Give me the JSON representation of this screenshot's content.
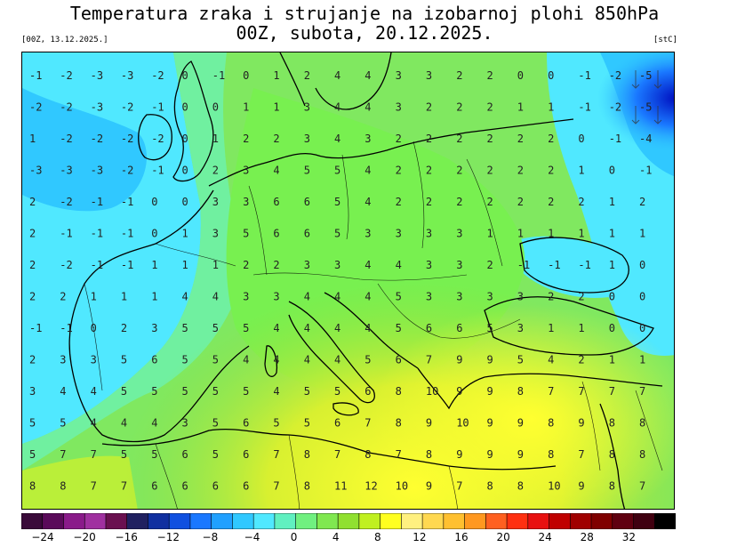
{
  "header": {
    "title_line1": "Temperatura zraka i strujanje na izobarnoj plohi 850hPa",
    "title_line2": "00Z, subota, 20.12.2025.",
    "run_label": "[00Z, 13.12.2025.]",
    "unit_label": "[stC]"
  },
  "legend": {
    "tick_labels": [
      "−24",
      "−20",
      "−16",
      "−12",
      "−8",
      "−4",
      "0",
      "4",
      "8",
      "12",
      "16",
      "20",
      "24",
      "28",
      "32"
    ],
    "colors": [
      "#3a0a3a",
      "#5a0a5a",
      "#8a1a8a",
      "#a030a0",
      "#6a1050",
      "#202060",
      "#1030a0",
      "#1050e0",
      "#1a78ff",
      "#20a0ff",
      "#30c8ff",
      "#50e8ff",
      "#60f0c0",
      "#70f080",
      "#80e850",
      "#90e030",
      "#c0f020",
      "#ffff20",
      "#fff080",
      "#ffd850",
      "#ffc030",
      "#ff9820",
      "#ff6020",
      "#ff3010",
      "#e81010",
      "#c00000",
      "#a00000",
      "#800000",
      "#600010",
      "#400010",
      "#000000"
    ]
  },
  "map": {
    "region": "Europe",
    "field": "850hPa temperature",
    "grid_values": [
      [
        "-1",
        "-2",
        "-3",
        "-3",
        "-2",
        "0",
        "-1",
        "0",
        "1",
        "2",
        "4",
        "4",
        "3",
        "3",
        "2",
        "2",
        "0",
        "0",
        "-1",
        "-2",
        "-5"
      ],
      [
        "-2",
        "-2",
        "-3",
        "-2",
        "-1",
        "0",
        "0",
        "1",
        "1",
        "3",
        "4",
        "4",
        "3",
        "2",
        "2",
        "2",
        "1",
        "1",
        "-1",
        "-2",
        "-5"
      ],
      [
        "1",
        "-2",
        "-2",
        "-2",
        "-2",
        "0",
        "1",
        "2",
        "2",
        "3",
        "4",
        "3",
        "2",
        "2",
        "2",
        "2",
        "2",
        "2",
        "0",
        "-1",
        "-4"
      ],
      [
        "-3",
        "-3",
        "-3",
        "-2",
        "-1",
        "0",
        "2",
        "3",
        "4",
        "5",
        "5",
        "4",
        "2",
        "2",
        "2",
        "2",
        "2",
        "2",
        "1",
        "0",
        "-1"
      ],
      [
        "2",
        "-2",
        "-1",
        "-1",
        "0",
        "0",
        "3",
        "3",
        "6",
        "6",
        "5",
        "4",
        "2",
        "2",
        "2",
        "2",
        "2",
        "2",
        "2",
        "1",
        "2"
      ],
      [
        "2",
        "-1",
        "-1",
        "-1",
        "0",
        "1",
        "3",
        "5",
        "6",
        "6",
        "5",
        "3",
        "3",
        "3",
        "3",
        "1",
        "1",
        "1",
        "1",
        "1",
        "1"
      ],
      [
        "2",
        "-2",
        "-1",
        "-1",
        "1",
        "1",
        "1",
        "2",
        "2",
        "3",
        "3",
        "4",
        "4",
        "3",
        "3",
        "2",
        "-1",
        "-1",
        "-1",
        "1",
        "0"
      ],
      [
        "2",
        "2",
        "1",
        "1",
        "1",
        "4",
        "4",
        "3",
        "3",
        "4",
        "4",
        "4",
        "5",
        "3",
        "3",
        "3",
        "3",
        "2",
        "2",
        "0",
        "0"
      ],
      [
        "-1",
        "-1",
        "0",
        "2",
        "3",
        "5",
        "5",
        "5",
        "4",
        "4",
        "4",
        "4",
        "5",
        "6",
        "6",
        "5",
        "3",
        "1",
        "1",
        "0",
        "0"
      ],
      [
        "2",
        "3",
        "3",
        "5",
        "6",
        "5",
        "5",
        "4",
        "4",
        "4",
        "4",
        "5",
        "6",
        "7",
        "9",
        "9",
        "5",
        "4",
        "2",
        "1",
        "1"
      ],
      [
        "3",
        "4",
        "4",
        "5",
        "5",
        "5",
        "5",
        "5",
        "4",
        "5",
        "5",
        "6",
        "8",
        "10",
        "9",
        "9",
        "8",
        "7",
        "7",
        "7",
        "7"
      ],
      [
        "5",
        "5",
        "4",
        "4",
        "4",
        "3",
        "5",
        "6",
        "5",
        "5",
        "6",
        "7",
        "8",
        "9",
        "10",
        "9",
        "9",
        "8",
        "9",
        "8",
        "8"
      ],
      [
        "5",
        "7",
        "7",
        "5",
        "5",
        "6",
        "5",
        "6",
        "7",
        "8",
        "7",
        "8",
        "7",
        "8",
        "9",
        "9",
        "9",
        "8",
        "7",
        "8",
        "8"
      ],
      [
        "8",
        "8",
        "7",
        "7",
        "6",
        "6",
        "6",
        "6",
        "7",
        "8",
        "11",
        "12",
        "10",
        "9",
        "7",
        "8",
        "8",
        "10",
        "9",
        "8",
        "7"
      ]
    ]
  }
}
